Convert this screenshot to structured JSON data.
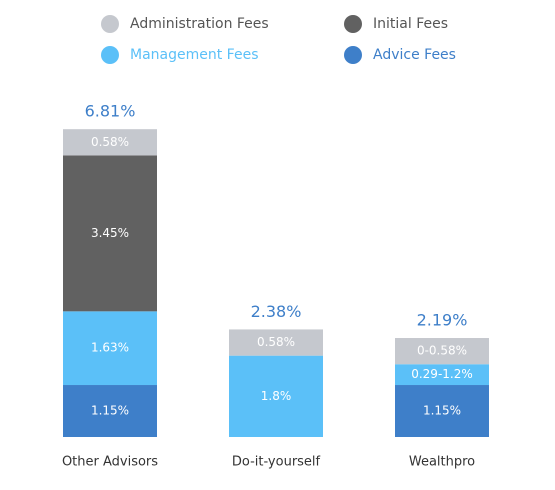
{
  "chart_data": {
    "type": "stacked-bar",
    "categories": [
      "Other Advisors",
      "Do-it-yourself",
      "Wealthpro"
    ],
    "series": [
      {
        "name": "Administration Fees",
        "color": "#c5c8ce",
        "label_color": "#555555",
        "values": [
          0.58,
          0.58,
          0.58
        ],
        "value_labels": [
          "0.58%",
          "0.58%",
          "0-0.58%"
        ]
      },
      {
        "name": "Initial Fees",
        "color": "#616161",
        "label_color": "#555555",
        "values": [
          3.45,
          null,
          null
        ],
        "value_labels": [
          "3.45%",
          null,
          null
        ]
      },
      {
        "name": "Management Fees",
        "color": "#5bc0f8",
        "label_color": "#5bc0f8",
        "values": [
          1.63,
          1.8,
          0.46
        ],
        "value_labels": [
          "1.63%",
          "1.8%",
          "0.29-1.2%"
        ]
      },
      {
        "name": "Advice Fees",
        "color": "#3e7fc9",
        "label_color": "#3e7fc9",
        "values": [
          1.15,
          null,
          1.15
        ],
        "value_labels": [
          "1.15%",
          null,
          "1.15%"
        ]
      }
    ],
    "totals": [
      6.81,
      2.38,
      2.19
    ],
    "total_labels": [
      "6.81%",
      "2.38%",
      "2.19%"
    ],
    "total_color": "#3e7fc9"
  }
}
